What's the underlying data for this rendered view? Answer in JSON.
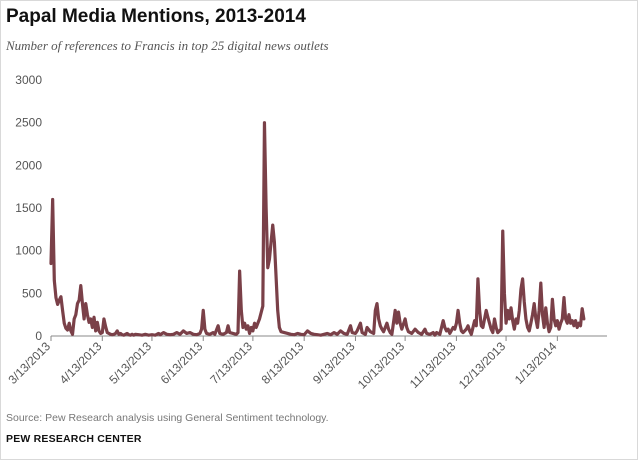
{
  "title": "Papal Media Mentions, 2013-2014",
  "subtitle": "Number of references to Francis in top 25 digital news outlets",
  "source": "Source: Pew Research analysis using General Sentiment technology.",
  "organization": "PEW RESEARCH CENTER",
  "chart_data": {
    "type": "line",
    "title": "Papal Media Mentions, 2013-2014",
    "xlabel": "",
    "ylabel": "",
    "x_range": [
      "2013-03-13",
      "2014-02-12"
    ],
    "ylim": [
      0,
      3000
    ],
    "y_ticks": [
      0,
      500,
      1000,
      1500,
      2000,
      2500,
      3000
    ],
    "x_ticks": [
      {
        "date": "2013-03-13",
        "label": "3/13/2013"
      },
      {
        "date": "2013-04-13",
        "label": "4/13/2013"
      },
      {
        "date": "2013-05-13",
        "label": "5/13/2013"
      },
      {
        "date": "2013-06-13",
        "label": "6/13/2013"
      },
      {
        "date": "2013-07-13",
        "label": "7/13/2013"
      },
      {
        "date": "2013-08-13",
        "label": "8/13/2013"
      },
      {
        "date": "2013-09-13",
        "label": "9/13/2013"
      },
      {
        "date": "2013-10-13",
        "label": "10/13/2013"
      },
      {
        "date": "2013-11-13",
        "label": "11/13/2013"
      },
      {
        "date": "2013-12-13",
        "label": "12/13/2013"
      },
      {
        "date": "2014-01-13",
        "label": "1/13/2014"
      }
    ],
    "grid": false,
    "line_color": "#7a4048",
    "series": [
      {
        "name": "",
        "points": [
          [
            "2013-03-13",
            850
          ],
          [
            "2013-03-14",
            1600
          ],
          [
            "2013-03-15",
            650
          ],
          [
            "2013-03-16",
            450
          ],
          [
            "2013-03-17",
            370
          ],
          [
            "2013-03-18",
            420
          ],
          [
            "2013-03-19",
            460
          ],
          [
            "2013-03-20",
            300
          ],
          [
            "2013-03-21",
            150
          ],
          [
            "2013-03-22",
            90
          ],
          [
            "2013-03-23",
            70
          ],
          [
            "2013-03-24",
            150
          ],
          [
            "2013-03-25",
            60
          ],
          [
            "2013-03-26",
            20
          ],
          [
            "2013-03-27",
            200
          ],
          [
            "2013-03-28",
            250
          ],
          [
            "2013-03-29",
            380
          ],
          [
            "2013-03-30",
            420
          ],
          [
            "2013-03-31",
            590
          ],
          [
            "2013-04-01",
            380
          ],
          [
            "2013-04-02",
            200
          ],
          [
            "2013-04-03",
            380
          ],
          [
            "2013-04-04",
            250
          ],
          [
            "2013-04-05",
            160
          ],
          [
            "2013-04-06",
            200
          ],
          [
            "2013-04-07",
            100
          ],
          [
            "2013-04-08",
            220
          ],
          [
            "2013-04-09",
            60
          ],
          [
            "2013-04-10",
            160
          ],
          [
            "2013-04-11",
            60
          ],
          [
            "2013-04-12",
            30
          ],
          [
            "2013-04-13",
            40
          ],
          [
            "2013-04-14",
            200
          ],
          [
            "2013-04-15",
            110
          ],
          [
            "2013-04-16",
            40
          ],
          [
            "2013-04-17",
            30
          ],
          [
            "2013-04-18",
            20
          ],
          [
            "2013-04-19",
            15
          ],
          [
            "2013-04-20",
            20
          ],
          [
            "2013-04-21",
            30
          ],
          [
            "2013-04-22",
            60
          ],
          [
            "2013-04-23",
            20
          ],
          [
            "2013-04-24",
            30
          ],
          [
            "2013-04-25",
            15
          ],
          [
            "2013-04-26",
            10
          ],
          [
            "2013-04-27",
            20
          ],
          [
            "2013-04-28",
            30
          ],
          [
            "2013-04-29",
            15
          ],
          [
            "2013-04-30",
            10
          ],
          [
            "2013-05-01",
            20
          ],
          [
            "2013-05-02",
            10
          ],
          [
            "2013-05-03",
            20
          ],
          [
            "2013-05-05",
            15
          ],
          [
            "2013-05-07",
            10
          ],
          [
            "2013-05-09",
            20
          ],
          [
            "2013-05-11",
            10
          ],
          [
            "2013-05-13",
            15
          ],
          [
            "2013-05-15",
            10
          ],
          [
            "2013-05-17",
            30
          ],
          [
            "2013-05-18",
            15
          ],
          [
            "2013-05-20",
            40
          ],
          [
            "2013-05-22",
            20
          ],
          [
            "2013-05-24",
            15
          ],
          [
            "2013-05-26",
            20
          ],
          [
            "2013-05-28",
            40
          ],
          [
            "2013-05-30",
            20
          ],
          [
            "2013-06-01",
            60
          ],
          [
            "2013-06-03",
            30
          ],
          [
            "2013-06-05",
            40
          ],
          [
            "2013-06-07",
            20
          ],
          [
            "2013-06-09",
            15
          ],
          [
            "2013-06-11",
            30
          ],
          [
            "2013-06-12",
            80
          ],
          [
            "2013-06-13",
            300
          ],
          [
            "2013-06-14",
            80
          ],
          [
            "2013-06-15",
            30
          ],
          [
            "2013-06-17",
            20
          ],
          [
            "2013-06-19",
            40
          ],
          [
            "2013-06-20",
            20
          ],
          [
            "2013-06-22",
            120
          ],
          [
            "2013-06-23",
            30
          ],
          [
            "2013-06-25",
            20
          ],
          [
            "2013-06-27",
            40
          ],
          [
            "2013-06-28",
            120
          ],
          [
            "2013-06-29",
            40
          ],
          [
            "2013-07-01",
            30
          ],
          [
            "2013-07-03",
            20
          ],
          [
            "2013-07-04",
            40
          ],
          [
            "2013-07-05",
            760
          ],
          [
            "2013-07-06",
            300
          ],
          [
            "2013-07-07",
            100
          ],
          [
            "2013-07-08",
            150
          ],
          [
            "2013-07-09",
            80
          ],
          [
            "2013-07-10",
            120
          ],
          [
            "2013-07-11",
            30
          ],
          [
            "2013-07-12",
            100
          ],
          [
            "2013-07-13",
            60
          ],
          [
            "2013-07-14",
            150
          ],
          [
            "2013-07-15",
            100
          ],
          [
            "2013-07-17",
            200
          ],
          [
            "2013-07-19",
            350
          ],
          [
            "2013-07-20",
            2500
          ],
          [
            "2013-07-21",
            1500
          ],
          [
            "2013-07-22",
            800
          ],
          [
            "2013-07-23",
            900
          ],
          [
            "2013-07-24",
            1100
          ],
          [
            "2013-07-25",
            1300
          ],
          [
            "2013-07-26",
            1100
          ],
          [
            "2013-07-27",
            700
          ],
          [
            "2013-07-28",
            300
          ],
          [
            "2013-07-29",
            100
          ],
          [
            "2013-07-30",
            50
          ],
          [
            "2013-08-01",
            40
          ],
          [
            "2013-08-03",
            30
          ],
          [
            "2013-08-05",
            20
          ],
          [
            "2013-08-07",
            15
          ],
          [
            "2013-08-09",
            30
          ],
          [
            "2013-08-11",
            20
          ],
          [
            "2013-08-13",
            15
          ],
          [
            "2013-08-15",
            60
          ],
          [
            "2013-08-17",
            30
          ],
          [
            "2013-08-19",
            20
          ],
          [
            "2013-08-21",
            15
          ],
          [
            "2013-08-23",
            10
          ],
          [
            "2013-08-25",
            20
          ],
          [
            "2013-08-27",
            30
          ],
          [
            "2013-08-29",
            15
          ],
          [
            "2013-08-31",
            40
          ],
          [
            "2013-09-02",
            20
          ],
          [
            "2013-09-04",
            60
          ],
          [
            "2013-09-06",
            30
          ],
          [
            "2013-09-08",
            20
          ],
          [
            "2013-09-10",
            120
          ],
          [
            "2013-09-11",
            40
          ],
          [
            "2013-09-13",
            30
          ],
          [
            "2013-09-14",
            60
          ],
          [
            "2013-09-16",
            150
          ],
          [
            "2013-09-17",
            40
          ],
          [
            "2013-09-19",
            20
          ],
          [
            "2013-09-20",
            100
          ],
          [
            "2013-09-22",
            50
          ],
          [
            "2013-09-24",
            30
          ],
          [
            "2013-09-25",
            300
          ],
          [
            "2013-09-26",
            380
          ],
          [
            "2013-09-27",
            200
          ],
          [
            "2013-09-28",
            120
          ],
          [
            "2013-09-29",
            80
          ],
          [
            "2013-09-30",
            50
          ],
          [
            "2013-10-02",
            150
          ],
          [
            "2013-10-03",
            80
          ],
          [
            "2013-10-04",
            40
          ],
          [
            "2013-10-05",
            20
          ],
          [
            "2013-10-07",
            300
          ],
          [
            "2013-10-08",
            150
          ],
          [
            "2013-10-09",
            280
          ],
          [
            "2013-10-10",
            150
          ],
          [
            "2013-10-11",
            80
          ],
          [
            "2013-10-13",
            200
          ],
          [
            "2013-10-14",
            100
          ],
          [
            "2013-10-15",
            50
          ],
          [
            "2013-10-17",
            30
          ],
          [
            "2013-10-19",
            80
          ],
          [
            "2013-10-21",
            40
          ],
          [
            "2013-10-23",
            20
          ],
          [
            "2013-10-25",
            80
          ],
          [
            "2013-10-26",
            30
          ],
          [
            "2013-10-28",
            20
          ],
          [
            "2013-10-30",
            40
          ],
          [
            "2013-10-31",
            10
          ],
          [
            "2013-11-01",
            40
          ],
          [
            "2013-11-03",
            20
          ],
          [
            "2013-11-05",
            180
          ],
          [
            "2013-11-06",
            100
          ],
          [
            "2013-11-07",
            60
          ],
          [
            "2013-11-08",
            80
          ],
          [
            "2013-11-09",
            30
          ],
          [
            "2013-11-11",
            100
          ],
          [
            "2013-11-12",
            80
          ],
          [
            "2013-11-13",
            150
          ],
          [
            "2013-11-14",
            300
          ],
          [
            "2013-11-15",
            150
          ],
          [
            "2013-11-16",
            60
          ],
          [
            "2013-11-17",
            40
          ],
          [
            "2013-11-19",
            80
          ],
          [
            "2013-11-20",
            120
          ],
          [
            "2013-11-21",
            60
          ],
          [
            "2013-11-22",
            20
          ],
          [
            "2013-11-23",
            100
          ],
          [
            "2013-11-24",
            180
          ],
          [
            "2013-11-25",
            120
          ],
          [
            "2013-11-26",
            670
          ],
          [
            "2013-11-27",
            300
          ],
          [
            "2013-11-28",
            120
          ],
          [
            "2013-11-29",
            100
          ],
          [
            "2013-11-30",
            200
          ],
          [
            "2013-12-01",
            300
          ],
          [
            "2013-12-02",
            220
          ],
          [
            "2013-12-03",
            150
          ],
          [
            "2013-12-04",
            80
          ],
          [
            "2013-12-05",
            40
          ],
          [
            "2013-12-06",
            200
          ],
          [
            "2013-12-07",
            100
          ],
          [
            "2013-12-08",
            40
          ],
          [
            "2013-12-10",
            80
          ],
          [
            "2013-12-11",
            1230
          ],
          [
            "2013-12-12",
            500
          ],
          [
            "2013-12-13",
            150
          ],
          [
            "2013-12-14",
            300
          ],
          [
            "2013-12-15",
            200
          ],
          [
            "2013-12-16",
            330
          ],
          [
            "2013-12-17",
            180
          ],
          [
            "2013-12-18",
            80
          ],
          [
            "2013-12-19",
            200
          ],
          [
            "2013-12-20",
            150
          ],
          [
            "2013-12-21",
            300
          ],
          [
            "2013-12-22",
            550
          ],
          [
            "2013-12-23",
            670
          ],
          [
            "2013-12-24",
            400
          ],
          [
            "2013-12-25",
            200
          ],
          [
            "2013-12-26",
            100
          ],
          [
            "2013-12-27",
            60
          ],
          [
            "2013-12-28",
            150
          ],
          [
            "2013-12-29",
            250
          ],
          [
            "2013-12-30",
            380
          ],
          [
            "2013-12-31",
            200
          ],
          [
            "2014-01-01",
            100
          ],
          [
            "2014-01-02",
            300
          ],
          [
            "2014-01-03",
            620
          ],
          [
            "2014-01-04",
            250
          ],
          [
            "2014-01-05",
            100
          ],
          [
            "2014-01-06",
            330
          ],
          [
            "2014-01-07",
            150
          ],
          [
            "2014-01-08",
            50
          ],
          [
            "2014-01-09",
            100
          ],
          [
            "2014-01-10",
            430
          ],
          [
            "2014-01-11",
            200
          ],
          [
            "2014-01-12",
            120
          ],
          [
            "2014-01-13",
            180
          ],
          [
            "2014-01-14",
            80
          ],
          [
            "2014-01-15",
            150
          ],
          [
            "2014-01-16",
            200
          ],
          [
            "2014-01-17",
            450
          ],
          [
            "2014-01-18",
            200
          ],
          [
            "2014-01-19",
            150
          ],
          [
            "2014-01-20",
            250
          ],
          [
            "2014-01-21",
            150
          ],
          [
            "2014-01-22",
            180
          ],
          [
            "2014-01-23",
            120
          ],
          [
            "2014-01-24",
            180
          ],
          [
            "2014-01-25",
            100
          ],
          [
            "2014-01-26",
            150
          ],
          [
            "2014-01-27",
            120
          ],
          [
            "2014-01-28",
            320
          ],
          [
            "2014-01-29",
            200
          ]
        ]
      }
    ]
  }
}
